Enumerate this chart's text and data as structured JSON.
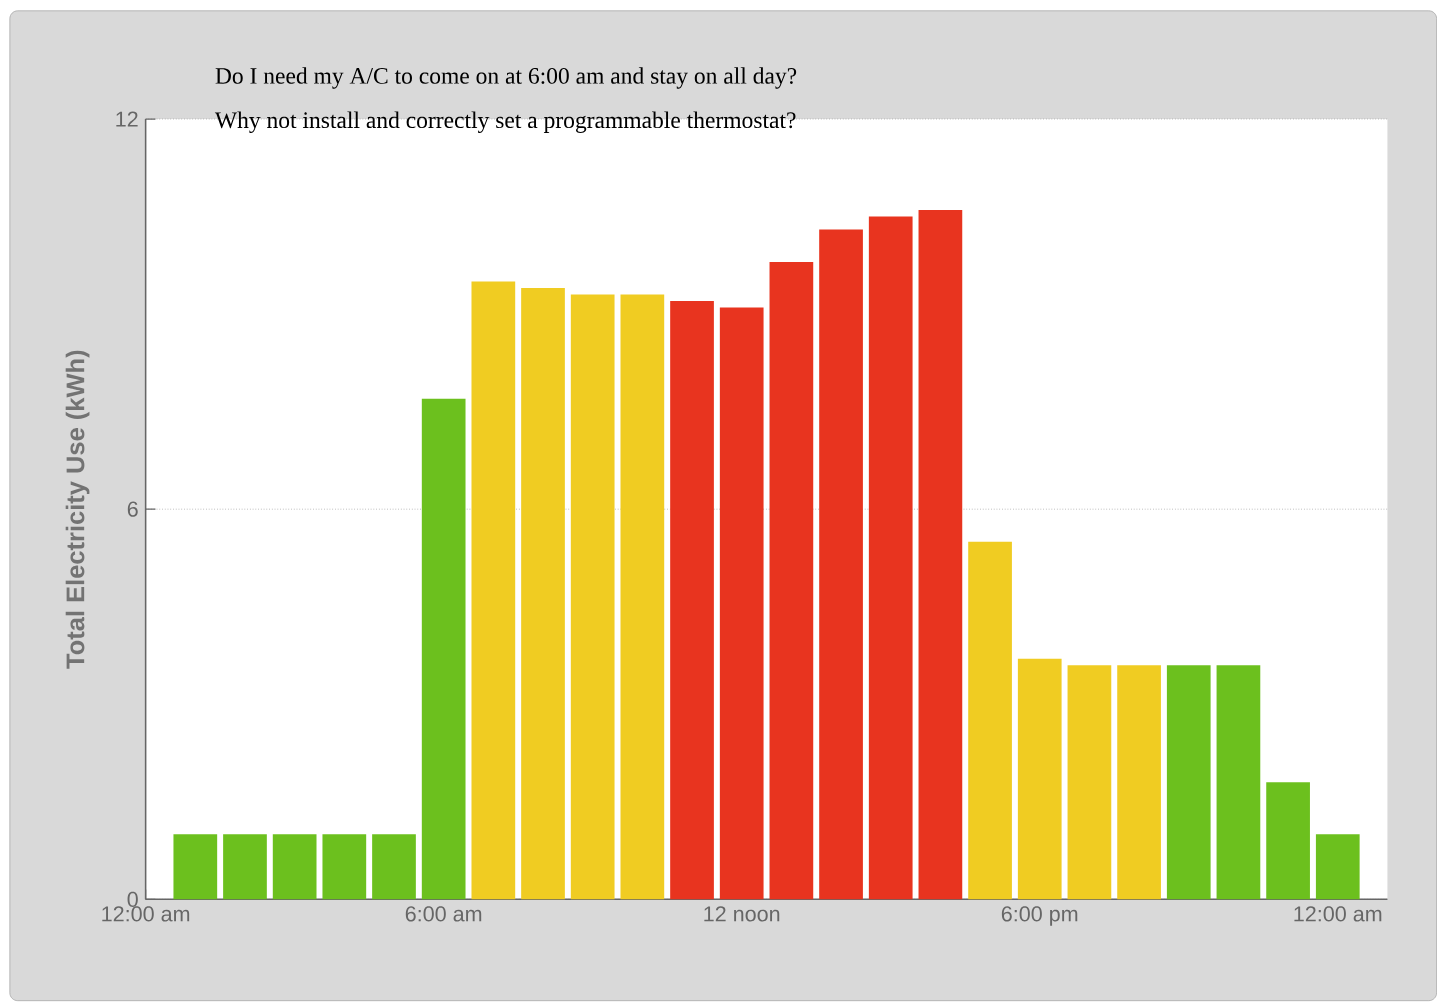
{
  "chart_data": {
    "type": "bar",
    "annotations": [
      "Do I need my A/C to come on at 6:00 am and stay on all day?",
      "Why not install and correctly set a programmable thermostat?"
    ],
    "ylabel": "Total Electricity Use (kWh)",
    "x": [
      1,
      2,
      3,
      4,
      5,
      6,
      7,
      8,
      9,
      10,
      11,
      12,
      13,
      14,
      15,
      16,
      17,
      18,
      19,
      20,
      21,
      22,
      23,
      24
    ],
    "values": [
      1.0,
      1.0,
      1.0,
      1.0,
      1.0,
      7.7,
      9.5,
      9.4,
      9.3,
      9.3,
      9.2,
      9.1,
      9.8,
      10.3,
      10.5,
      10.6,
      5.5,
      3.7,
      3.6,
      3.6,
      3.6,
      3.6,
      1.8,
      1.0
    ],
    "colors": [
      "#6cc01e",
      "#6cc01e",
      "#6cc01e",
      "#6cc01e",
      "#6cc01e",
      "#6cc01e",
      "#f0cc22",
      "#f0cc22",
      "#f0cc22",
      "#f0cc22",
      "#e8341f",
      "#e8341f",
      "#e8341f",
      "#e8341f",
      "#e8341f",
      "#e8341f",
      "#f0cc22",
      "#f0cc22",
      "#f0cc22",
      "#f0cc22",
      "#6cc01e",
      "#6cc01e",
      "#6cc01e",
      "#6cc01e"
    ],
    "xlim": [
      0,
      25
    ],
    "xticks": [
      {
        "value": 0,
        "label": "12:00 am"
      },
      {
        "value": 6,
        "label": "6:00 am"
      },
      {
        "value": 12,
        "label": "12 noon"
      },
      {
        "value": 18,
        "label": "6:00 pm"
      },
      {
        "value": 24,
        "label": "12:00 am"
      }
    ],
    "ylim": [
      0,
      12
    ],
    "yticks": [
      0,
      6,
      12
    ],
    "grid": "y"
  }
}
